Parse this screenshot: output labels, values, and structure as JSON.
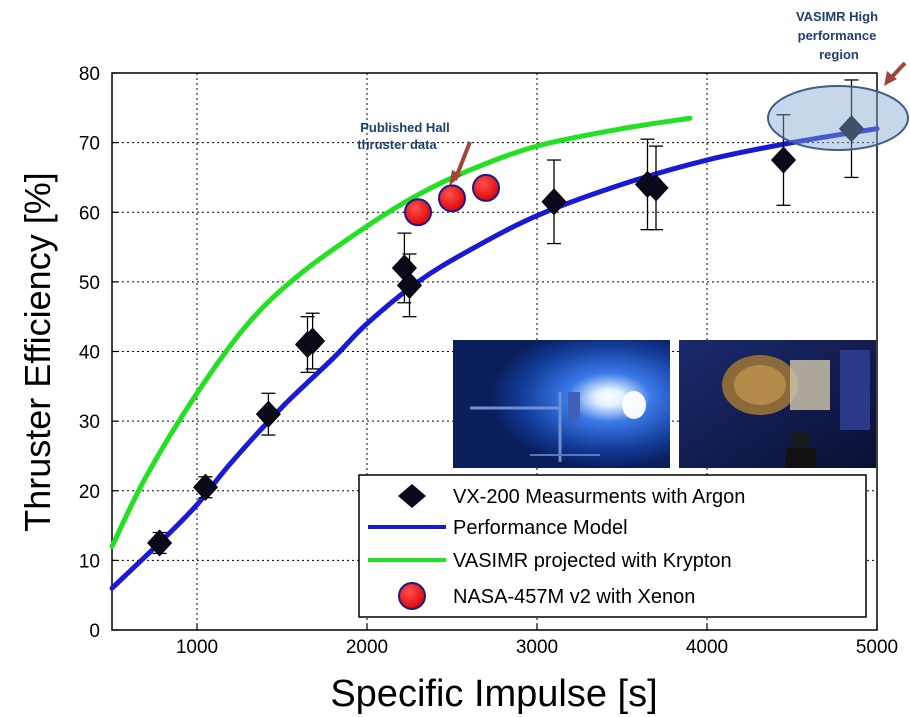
{
  "chart_data": {
    "type": "line",
    "xlabel": "Specific Impulse [s]",
    "ylabel": "Thruster Efficiency [%]",
    "xlim": [
      500,
      5000
    ],
    "ylim": [
      0,
      80
    ],
    "xticks": [
      1000,
      2000,
      3000,
      4000,
      5000
    ],
    "yticks": [
      0,
      10,
      20,
      30,
      40,
      50,
      60,
      70,
      80
    ],
    "grid": true,
    "legend_position": "bottom-right",
    "series": [
      {
        "name": "VX-200 Measurments with Argon",
        "kind": "scatter-errorbar",
        "marker": "diamond",
        "color": "#0a0a1a",
        "points": [
          {
            "x": 780,
            "y": 12.5,
            "err": 1.5
          },
          {
            "x": 1050,
            "y": 20.5,
            "err": 1.5
          },
          {
            "x": 1420,
            "y": 31,
            "err": 3
          },
          {
            "x": 1650,
            "y": 41,
            "err": 4
          },
          {
            "x": 1680,
            "y": 41.5,
            "err": 4
          },
          {
            "x": 2220,
            "y": 52,
            "err": 5
          },
          {
            "x": 2250,
            "y": 49.5,
            "err": 4.5
          },
          {
            "x": 3100,
            "y": 61.5,
            "err": 6
          },
          {
            "x": 3650,
            "y": 64,
            "err": 6.5
          },
          {
            "x": 3700,
            "y": 63.5,
            "err": 6
          },
          {
            "x": 4450,
            "y": 67.5,
            "err": 6.5
          },
          {
            "x": 4850,
            "y": 72,
            "err": 7
          }
        ]
      },
      {
        "name": "Performance Model",
        "kind": "line",
        "color": "#1a1ad6",
        "x": [
          500,
          800,
          1000,
          1200,
          1500,
          1800,
          2000,
          2300,
          2600,
          3000,
          3500,
          4000,
          4500,
          5000
        ],
        "y": [
          6,
          13,
          18,
          24,
          32,
          39,
          44,
          50,
          54.5,
          59.5,
          64,
          67.5,
          70,
          72
        ]
      },
      {
        "name": "VASIMR projected with Krypton",
        "kind": "line",
        "color": "#22e022",
        "x": [
          500,
          700,
          1000,
          1300,
          1600,
          2000,
          2300,
          2600,
          3000,
          3500,
          3900
        ],
        "y": [
          12,
          22,
          34,
          44,
          51,
          58,
          62.5,
          66,
          69.5,
          72,
          73.5
        ]
      },
      {
        "name": "NASA-457M v2 with Xenon",
        "kind": "scatter",
        "marker": "circle",
        "color": "#ee1111",
        "points": [
          {
            "x": 2300,
            "y": 60
          },
          {
            "x": 2500,
            "y": 62
          },
          {
            "x": 2700,
            "y": 63.5
          }
        ]
      }
    ],
    "annotations": [
      {
        "id": "hall",
        "lines": [
          "Published Hall",
          "thruster data"
        ],
        "color": "#1f3f73"
      },
      {
        "id": "vasimr",
        "lines": [
          "VASIMR High",
          "performance",
          "region"
        ],
        "color": "#1f3f73"
      }
    ]
  },
  "photos": [
    {
      "name": "plasma-plume-photo",
      "description_icon": "thruster-firing-image"
    },
    {
      "name": "thruster-hardware-photo",
      "description_icon": "technician-with-thruster-image"
    }
  ]
}
